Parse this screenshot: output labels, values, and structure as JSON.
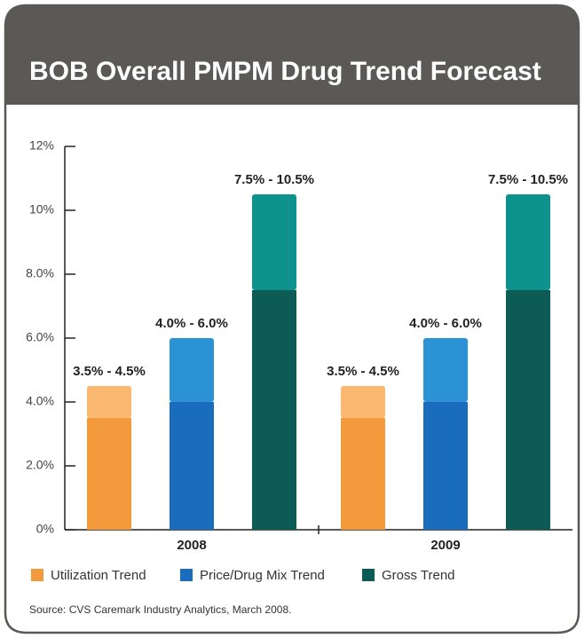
{
  "chart_data": {
    "type": "range_bar",
    "title": "BOB Overall PMPM Drug Trend Forecast",
    "categories": [
      "2008",
      "2009"
    ],
    "series": [
      {
        "name": "Utilization Trend",
        "color": "#f39a3c",
        "range_color": "#fbb870",
        "low": [
          3.5,
          3.5
        ],
        "high": [
          4.5,
          4.5
        ],
        "value_labels": [
          "3.5% - 4.5%",
          "3.5% - 4.5%"
        ]
      },
      {
        "name": "Price/Drug Mix Trend",
        "color": "#1a6dbd",
        "range_color": "#2b93d5",
        "low": [
          4.0,
          4.0
        ],
        "high": [
          6.0,
          6.0
        ],
        "value_labels": [
          "4.0% - 6.0%",
          "4.0% - 6.0%"
        ]
      },
      {
        "name": "Gross Trend",
        "color": "#0c5b55",
        "range_color": "#0e928d",
        "low": [
          7.5,
          7.5
        ],
        "high": [
          10.5,
          10.5
        ],
        "value_labels": [
          "7.5% - 10.5%",
          "7.5% - 10.5%"
        ]
      }
    ],
    "ylim": [
      0,
      12
    ],
    "yticks": [
      {
        "value": 0,
        "label": "0%"
      },
      {
        "value": 2,
        "label": "2.0%"
      },
      {
        "value": 4,
        "label": "4.0%"
      },
      {
        "value": 6,
        "label": "6.0%"
      },
      {
        "value": 8,
        "label": "8.0%"
      },
      {
        "value": 10,
        "label": "10%"
      },
      {
        "value": 12,
        "label": "12%"
      }
    ],
    "source": "Source: CVS Caremark Industry Analytics, March 2008."
  }
}
